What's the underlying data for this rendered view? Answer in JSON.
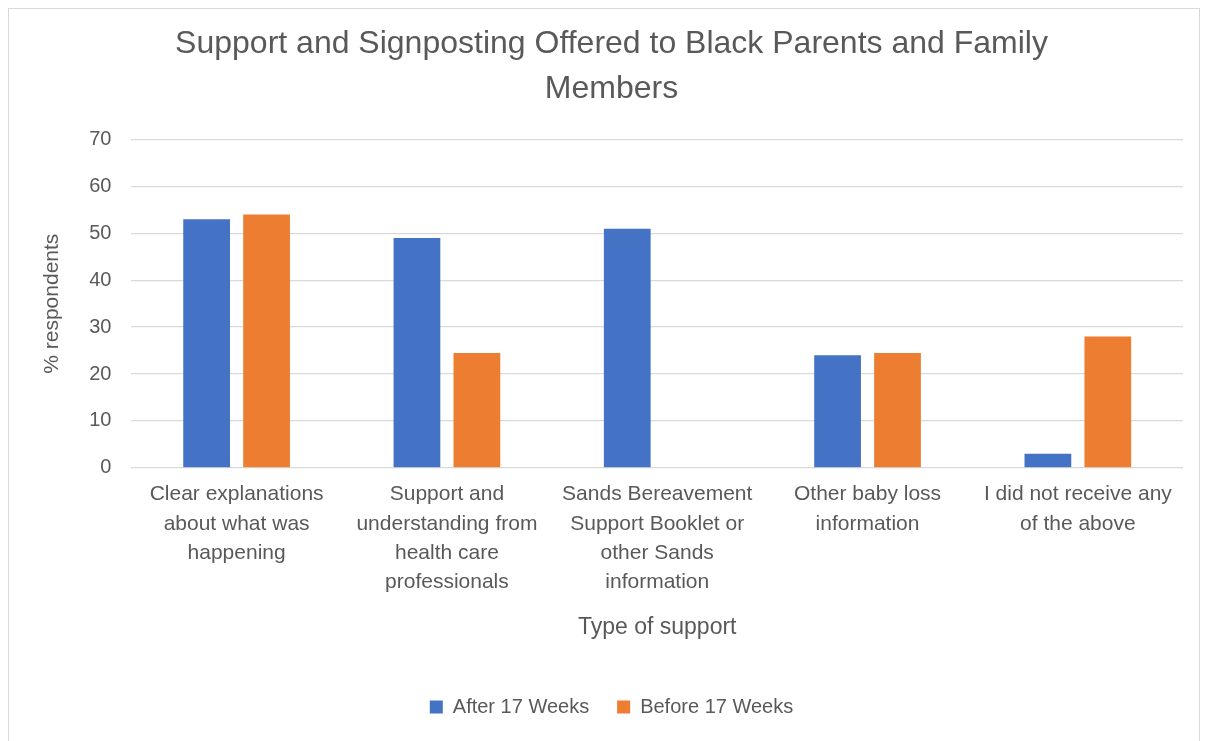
{
  "chart_data": {
    "type": "bar",
    "title": "Support and Signposting Offered to Black Parents and Family Members",
    "xlabel": "Type of support",
    "ylabel": "% respondents",
    "categories": [
      "Clear explanations about what was happening",
      "Support and understanding from health care professionals",
      "Sands Bereavement Support Booklet or other Sands information",
      "Other baby loss information",
      "I did not receive any of the above"
    ],
    "series": [
      {
        "name": "After 17 Weeks",
        "color": "#4472c4",
        "values": [
          53,
          49,
          51,
          24,
          3
        ]
      },
      {
        "name": "Before 17 Weeks",
        "color": "#ed7d31",
        "values": [
          54,
          24.5,
          null,
          24.5,
          28
        ]
      }
    ],
    "ylim": [
      0,
      70
    ],
    "yticks": [
      0,
      10,
      20,
      30,
      40,
      50,
      60,
      70
    ],
    "grid": "y",
    "legend": "bottom"
  }
}
